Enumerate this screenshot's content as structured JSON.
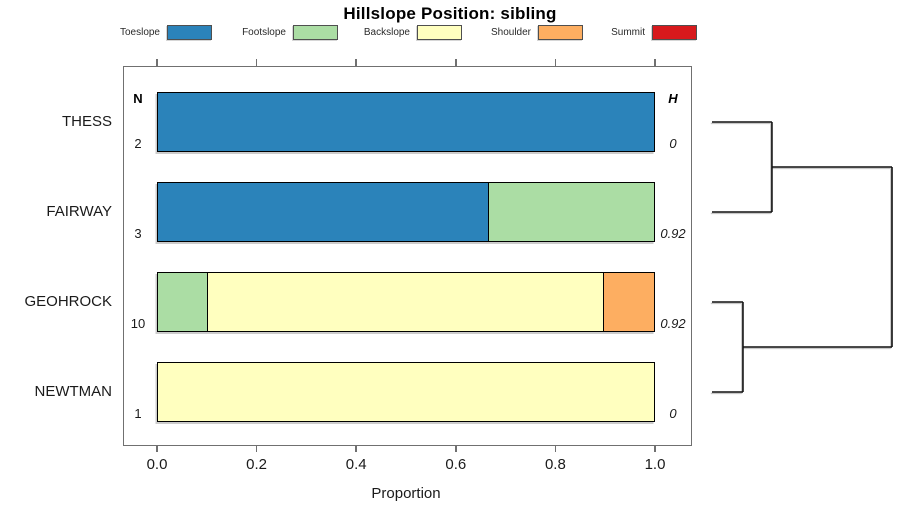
{
  "chart_data": {
    "type": "bar",
    "subtype": "stacked-horizontal-proportion-with-dendrogram",
    "title": "Hillslope Position: sibling",
    "xlabel": "Proportion",
    "xlim": [
      0,
      1
    ],
    "x_ticks": [
      "0.0",
      "0.2",
      "0.4",
      "0.6",
      "0.8",
      "1.0"
    ],
    "x_tick_values": [
      0.0,
      0.2,
      0.4,
      0.6,
      0.8,
      1.0
    ],
    "grid": false,
    "legend_position": "top",
    "n_header": "N",
    "h_header": "H",
    "legend": [
      {
        "label": "Toeslope",
        "color": "#2B83BA"
      },
      {
        "label": "Footslope",
        "color": "#ABDDA4"
      },
      {
        "label": "Backslope",
        "color": "#FFFFBF"
      },
      {
        "label": "Shoulder",
        "color": "#FDAE61"
      },
      {
        "label": "Summit",
        "color": "#D7191C"
      }
    ],
    "rows": [
      {
        "name": "THESS",
        "n": "2",
        "h": "0",
        "segments": [
          {
            "class": "Toeslope",
            "value": 1.0
          }
        ]
      },
      {
        "name": "FAIRWAY",
        "n": "3",
        "h": "0.92",
        "segments": [
          {
            "class": "Toeslope",
            "value": 0.667
          },
          {
            "class": "Footslope",
            "value": 0.333
          }
        ]
      },
      {
        "name": "GEOHROCK",
        "n": "10",
        "h": "0.92",
        "segments": [
          {
            "class": "Footslope",
            "value": 0.1
          },
          {
            "class": "Backslope",
            "value": 0.8
          },
          {
            "class": "Shoulder",
            "value": 0.1
          }
        ]
      },
      {
        "name": "NEWTMAN",
        "n": "1",
        "h": "0",
        "segments": [
          {
            "class": "Backslope",
            "value": 1.0
          }
        ]
      }
    ],
    "dendrogram": {
      "orientation": "right",
      "merges": [
        {
          "a": "THESS",
          "b": "FAIRWAY",
          "height": 0.333
        },
        {
          "a": "GEOHROCK",
          "b": "NEWTMAN",
          "height": 0.172
        },
        {
          "a": "merge-1",
          "b": "merge-2",
          "height": 1.0
        }
      ]
    }
  }
}
